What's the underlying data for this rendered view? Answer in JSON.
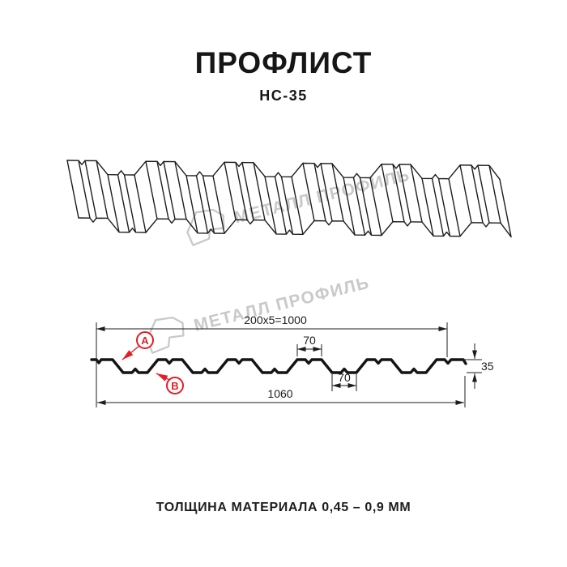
{
  "header": {
    "title": "ПРОФЛИСТ",
    "subtitle": "НС-35"
  },
  "watermark": {
    "text": "МЕТАЛЛ ПРОФИЛЬ"
  },
  "diagram": {
    "dims": {
      "top_total": "200x5=1000",
      "crest_width": "70",
      "valley_width": "70",
      "height": "35",
      "overall_width": "1060"
    },
    "markers": {
      "a": "А",
      "b": "В"
    }
  },
  "footer": {
    "thickness": "ТОЛЩИНА МАТЕРИАЛА 0,45 – 0,9 ММ"
  },
  "colors": {
    "line": "#1d1d1b",
    "accent_red": "#e31e24",
    "watermark_gray": "#c9c9c9"
  }
}
